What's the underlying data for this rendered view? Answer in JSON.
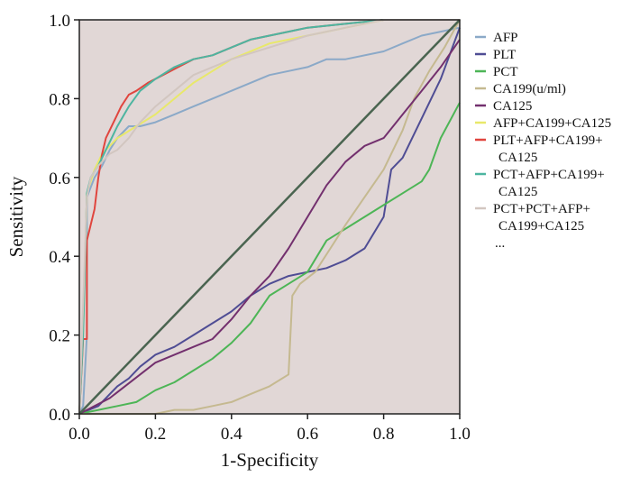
{
  "chart_data": {
    "type": "line",
    "title": "",
    "xlabel": "1-Specificity",
    "ylabel": "Sensitivity",
    "xlim": [
      0,
      1
    ],
    "ylim": [
      0,
      1
    ],
    "xticks": [
      "0.0",
      "0.2",
      "0.4",
      "0.6",
      "0.8",
      "1.0"
    ],
    "yticks": [
      "0.0",
      "0.2",
      "0.4",
      "0.6",
      "0.8",
      "1.0"
    ],
    "grid": false,
    "legend_position": "right",
    "plot_background": "#e1d7d6",
    "reference_line": {
      "color": "#4a6450",
      "x": [
        0,
        1
      ],
      "y": [
        0,
        1
      ]
    },
    "legend_more": "...",
    "series": [
      {
        "name": "AFP",
        "color": "#8ba9c8",
        "x": [
          0,
          0.01,
          0.02,
          0.02,
          0.04,
          0.06,
          0.08,
          0.1,
          0.13,
          0.16,
          0.2,
          0.25,
          0.3,
          0.35,
          0.4,
          0.45,
          0.5,
          0.55,
          0.6,
          0.65,
          0.7,
          0.8,
          0.85,
          0.9,
          0.95,
          1.0
        ],
        "y": [
          0,
          0.02,
          0.2,
          0.55,
          0.6,
          0.63,
          0.67,
          0.7,
          0.73,
          0.73,
          0.74,
          0.76,
          0.78,
          0.8,
          0.82,
          0.84,
          0.86,
          0.87,
          0.88,
          0.9,
          0.9,
          0.92,
          0.94,
          0.96,
          0.97,
          0.98
        ]
      },
      {
        "name": "PLT",
        "color": "#4f4d94",
        "x": [
          0,
          0.05,
          0.08,
          0.1,
          0.13,
          0.16,
          0.2,
          0.25,
          0.3,
          0.35,
          0.4,
          0.45,
          0.5,
          0.55,
          0.6,
          0.65,
          0.7,
          0.75,
          0.8,
          0.82,
          0.85,
          0.9,
          0.95,
          1.0
        ],
        "y": [
          0,
          0.02,
          0.05,
          0.07,
          0.09,
          0.12,
          0.15,
          0.17,
          0.2,
          0.23,
          0.26,
          0.3,
          0.33,
          0.35,
          0.36,
          0.37,
          0.39,
          0.42,
          0.5,
          0.62,
          0.65,
          0.75,
          0.85,
          0.98
        ]
      },
      {
        "name": "PCT",
        "color": "#4db556",
        "x": [
          0,
          0.1,
          0.15,
          0.2,
          0.25,
          0.3,
          0.35,
          0.4,
          0.45,
          0.5,
          0.55,
          0.6,
          0.65,
          0.7,
          0.75,
          0.8,
          0.85,
          0.9,
          0.92,
          0.95,
          1.0
        ],
        "y": [
          0,
          0.02,
          0.03,
          0.06,
          0.08,
          0.11,
          0.14,
          0.18,
          0.23,
          0.3,
          0.33,
          0.36,
          0.44,
          0.47,
          0.5,
          0.53,
          0.56,
          0.59,
          0.62,
          0.7,
          0.79
        ]
      },
      {
        "name": "CA199(u/ml)",
        "color": "#c5b990",
        "x": [
          0,
          0.2,
          0.25,
          0.3,
          0.35,
          0.4,
          0.45,
          0.5,
          0.55,
          0.56,
          0.58,
          0.62,
          0.66,
          0.7,
          0.75,
          0.8,
          0.85,
          0.88,
          0.92,
          0.96,
          1.0
        ],
        "y": [
          0,
          0,
          0.01,
          0.01,
          0.02,
          0.03,
          0.05,
          0.07,
          0.1,
          0.3,
          0.33,
          0.36,
          0.42,
          0.48,
          0.55,
          0.62,
          0.72,
          0.8,
          0.87,
          0.93,
          1.0
        ]
      },
      {
        "name": "CA125",
        "color": "#73306e",
        "x": [
          0,
          0.04,
          0.08,
          0.12,
          0.16,
          0.2,
          0.25,
          0.3,
          0.35,
          0.4,
          0.45,
          0.5,
          0.55,
          0.6,
          0.65,
          0.7,
          0.75,
          0.8,
          0.85,
          0.9,
          0.95,
          1.0
        ],
        "y": [
          0,
          0.02,
          0.04,
          0.07,
          0.1,
          0.13,
          0.15,
          0.17,
          0.19,
          0.24,
          0.3,
          0.35,
          0.42,
          0.5,
          0.58,
          0.64,
          0.68,
          0.7,
          0.76,
          0.82,
          0.88,
          0.95
        ]
      },
      {
        "name": "AFP+CA199+CA125",
        "color": "#e8e86a",
        "x": [
          0,
          0.01,
          0.02,
          0.04,
          0.06,
          0.08,
          0.1,
          0.15,
          0.2,
          0.25,
          0.3,
          0.35,
          0.4,
          0.45,
          0.5,
          0.55,
          0.6,
          0.65,
          0.7,
          0.75,
          0.8,
          1.0
        ],
        "y": [
          0,
          0.2,
          0.56,
          0.62,
          0.66,
          0.68,
          0.7,
          0.73,
          0.76,
          0.8,
          0.84,
          0.87,
          0.9,
          0.92,
          0.94,
          0.95,
          0.96,
          0.97,
          0.98,
          0.99,
          1.0,
          1.0
        ]
      },
      {
        "name": "PLT+AFP+CA199+\nCA125",
        "color": "#e0453e",
        "x": [
          0,
          0.01,
          0.02,
          0.02,
          0.04,
          0.05,
          0.06,
          0.07,
          0.09,
          0.11,
          0.13,
          0.15,
          0.18,
          0.22,
          0.26,
          0.3,
          0.35,
          0.4,
          0.45,
          0.5,
          0.55,
          0.6,
          0.7,
          0.8,
          1.0
        ],
        "y": [
          0,
          0.19,
          0.19,
          0.44,
          0.52,
          0.6,
          0.66,
          0.7,
          0.74,
          0.78,
          0.81,
          0.82,
          0.84,
          0.86,
          0.88,
          0.9,
          0.91,
          0.93,
          0.95,
          0.96,
          0.97,
          0.98,
          0.99,
          1.0,
          1.0
        ]
      },
      {
        "name": "PCT+AFP+CA199+\nCA125",
        "color": "#4db5a0",
        "x": [
          0,
          0.01,
          0.02,
          0.03,
          0.05,
          0.07,
          0.1,
          0.13,
          0.16,
          0.2,
          0.25,
          0.3,
          0.35,
          0.4,
          0.45,
          0.5,
          0.55,
          0.6,
          0.7,
          0.8,
          0.9,
          1.0
        ],
        "y": [
          0,
          0.2,
          0.56,
          0.6,
          0.63,
          0.67,
          0.73,
          0.78,
          0.82,
          0.85,
          0.88,
          0.9,
          0.91,
          0.93,
          0.95,
          0.96,
          0.97,
          0.98,
          0.99,
          1.0,
          1.0,
          1.0
        ]
      },
      {
        "name": "PCT+PCT+AFP+\nCA199+CA125",
        "color": "#d2c6c0",
        "x": [
          0,
          0.02,
          0.03,
          0.05,
          0.08,
          0.1,
          0.13,
          0.16,
          0.2,
          0.25,
          0.3,
          0.35,
          0.4,
          0.5,
          0.6,
          0.7,
          0.8,
          1.0
        ],
        "y": [
          0,
          0.55,
          0.6,
          0.63,
          0.66,
          0.67,
          0.7,
          0.74,
          0.78,
          0.82,
          0.86,
          0.88,
          0.9,
          0.93,
          0.96,
          0.98,
          1.0,
          1.0
        ]
      }
    ]
  }
}
